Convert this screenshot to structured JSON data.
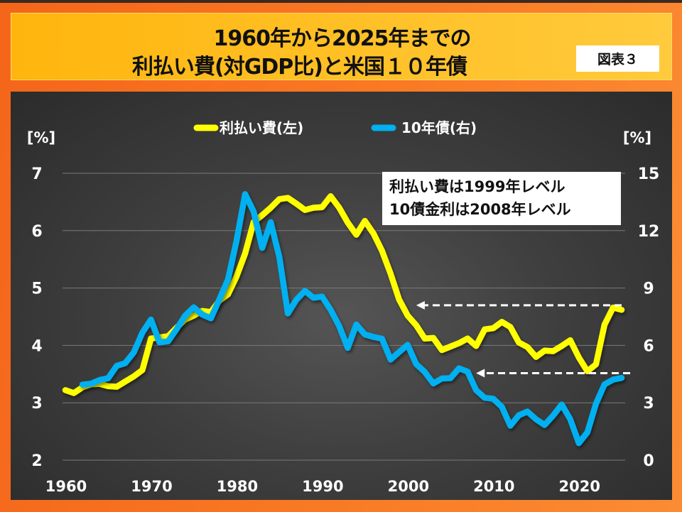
{
  "title": {
    "line1": "1960年から2025年までの",
    "line2": "利払い費(対GDP比)と米国１０年債",
    "figure_label": "図表３"
  },
  "annotation": {
    "line1": "利払い費は1999年レベル",
    "line2": "10債金利は2008年レベル"
  },
  "colors": {
    "interest": "#ffff00",
    "yield": "#00b0f0",
    "frame": "#f97a25",
    "title_bg": "#ffc000"
  },
  "chart_data": {
    "type": "line",
    "title": "1960年から2025年までの 利払い費(対GDP比)と米国１０年債",
    "xlabel": "",
    "ylabel_left": "[%]",
    "ylabel_right": "[%]",
    "xlim": [
      1960,
      2025
    ],
    "ylim_left": [
      2,
      7
    ],
    "ylim_right": [
      0,
      15
    ],
    "x_ticks": [
      "1960",
      "1970",
      "1980",
      "1990",
      "2000",
      "2010",
      "2020"
    ],
    "y_ticks_left": [
      "7",
      "6",
      "5",
      "4",
      "3",
      "2"
    ],
    "y_ticks_right": [
      "15",
      "12",
      "9",
      "6",
      "3",
      "0"
    ],
    "grid": true,
    "legend_position": "top-center",
    "series": [
      {
        "name": "利払い費(左)",
        "axis": "left",
        "x": [
          1960,
          1961,
          1962,
          1963,
          1964,
          1965,
          1966,
          1967,
          1968,
          1969,
          1970,
          1971,
          1972,
          1973,
          1974,
          1975,
          1976,
          1977,
          1978,
          1979,
          1980,
          1981,
          1982,
          1983,
          1984,
          1985,
          1986,
          1987,
          1988,
          1989,
          1990,
          1991,
          1992,
          1993,
          1994,
          1995,
          1996,
          1997,
          1998,
          1999,
          2000,
          2001,
          2002,
          2003,
          2004,
          2005,
          2006,
          2007,
          2008,
          2009,
          2010,
          2011,
          2012,
          2013,
          2014,
          2015,
          2016,
          2017,
          2018,
          2019,
          2020,
          2021,
          2022,
          2023,
          2024,
          2025
        ],
        "values": [
          3.22,
          3.17,
          3.27,
          3.32,
          3.33,
          3.29,
          3.28,
          3.37,
          3.46,
          3.57,
          4.12,
          4.14,
          4.16,
          4.31,
          4.45,
          4.52,
          4.6,
          4.58,
          4.78,
          4.89,
          5.2,
          5.6,
          6.15,
          6.27,
          6.4,
          6.55,
          6.57,
          6.47,
          6.36,
          6.4,
          6.41,
          6.6,
          6.4,
          6.14,
          5.93,
          6.17,
          5.95,
          5.65,
          5.25,
          4.8,
          4.52,
          4.35,
          4.12,
          4.13,
          3.92,
          3.98,
          4.04,
          4.12,
          3.99,
          4.28,
          4.3,
          4.41,
          4.32,
          4.05,
          3.97,
          3.8,
          3.91,
          3.9,
          3.99,
          4.09,
          3.79,
          3.55,
          3.67,
          4.36,
          4.66,
          4.62
        ]
      },
      {
        "name": "10年債(右)",
        "axis": "right",
        "x": [
          1962,
          1963,
          1964,
          1965,
          1966,
          1967,
          1968,
          1969,
          1970,
          1971,
          1972,
          1973,
          1974,
          1975,
          1976,
          1977,
          1978,
          1979,
          1980,
          1981,
          1982,
          1983,
          1984,
          1985,
          1986,
          1987,
          1988,
          1989,
          1990,
          1991,
          1992,
          1993,
          1994,
          1995,
          1996,
          1997,
          1998,
          1999,
          2000,
          2001,
          2002,
          2003,
          2004,
          2005,
          2006,
          2007,
          2008,
          2009,
          2010,
          2011,
          2012,
          2013,
          2014,
          2015,
          2016,
          2017,
          2018,
          2019,
          2020,
          2021,
          2022,
          2023,
          2024,
          2025
        ],
        "values": [
          3.95,
          4.0,
          4.19,
          4.28,
          4.93,
          5.07,
          5.64,
          6.67,
          7.35,
          6.16,
          6.21,
          6.85,
          7.56,
          7.99,
          7.61,
          7.42,
          8.41,
          9.44,
          11.46,
          13.91,
          13.0,
          11.1,
          12.44,
          10.62,
          7.67,
          8.39,
          8.85,
          8.49,
          8.55,
          7.86,
          7.01,
          5.87,
          7.09,
          6.57,
          6.44,
          6.35,
          5.26,
          5.65,
          6.03,
          5.02,
          4.61,
          4.01,
          4.27,
          4.29,
          4.8,
          4.63,
          3.66,
          3.26,
          3.21,
          2.79,
          1.8,
          2.35,
          2.54,
          2.14,
          1.84,
          2.33,
          2.91,
          2.14,
          0.89,
          1.45,
          2.95,
          3.96,
          4.21,
          4.3
        ]
      }
    ],
    "reference_arrows": [
      {
        "series": "利払い費(左)",
        "axis": "left",
        "value": 4.7,
        "from_year": 2025,
        "to_year": 2001
      },
      {
        "series": "10年債(右)",
        "axis": "right",
        "value": 4.55,
        "from_year": 2026,
        "to_year": 2008
      }
    ]
  }
}
